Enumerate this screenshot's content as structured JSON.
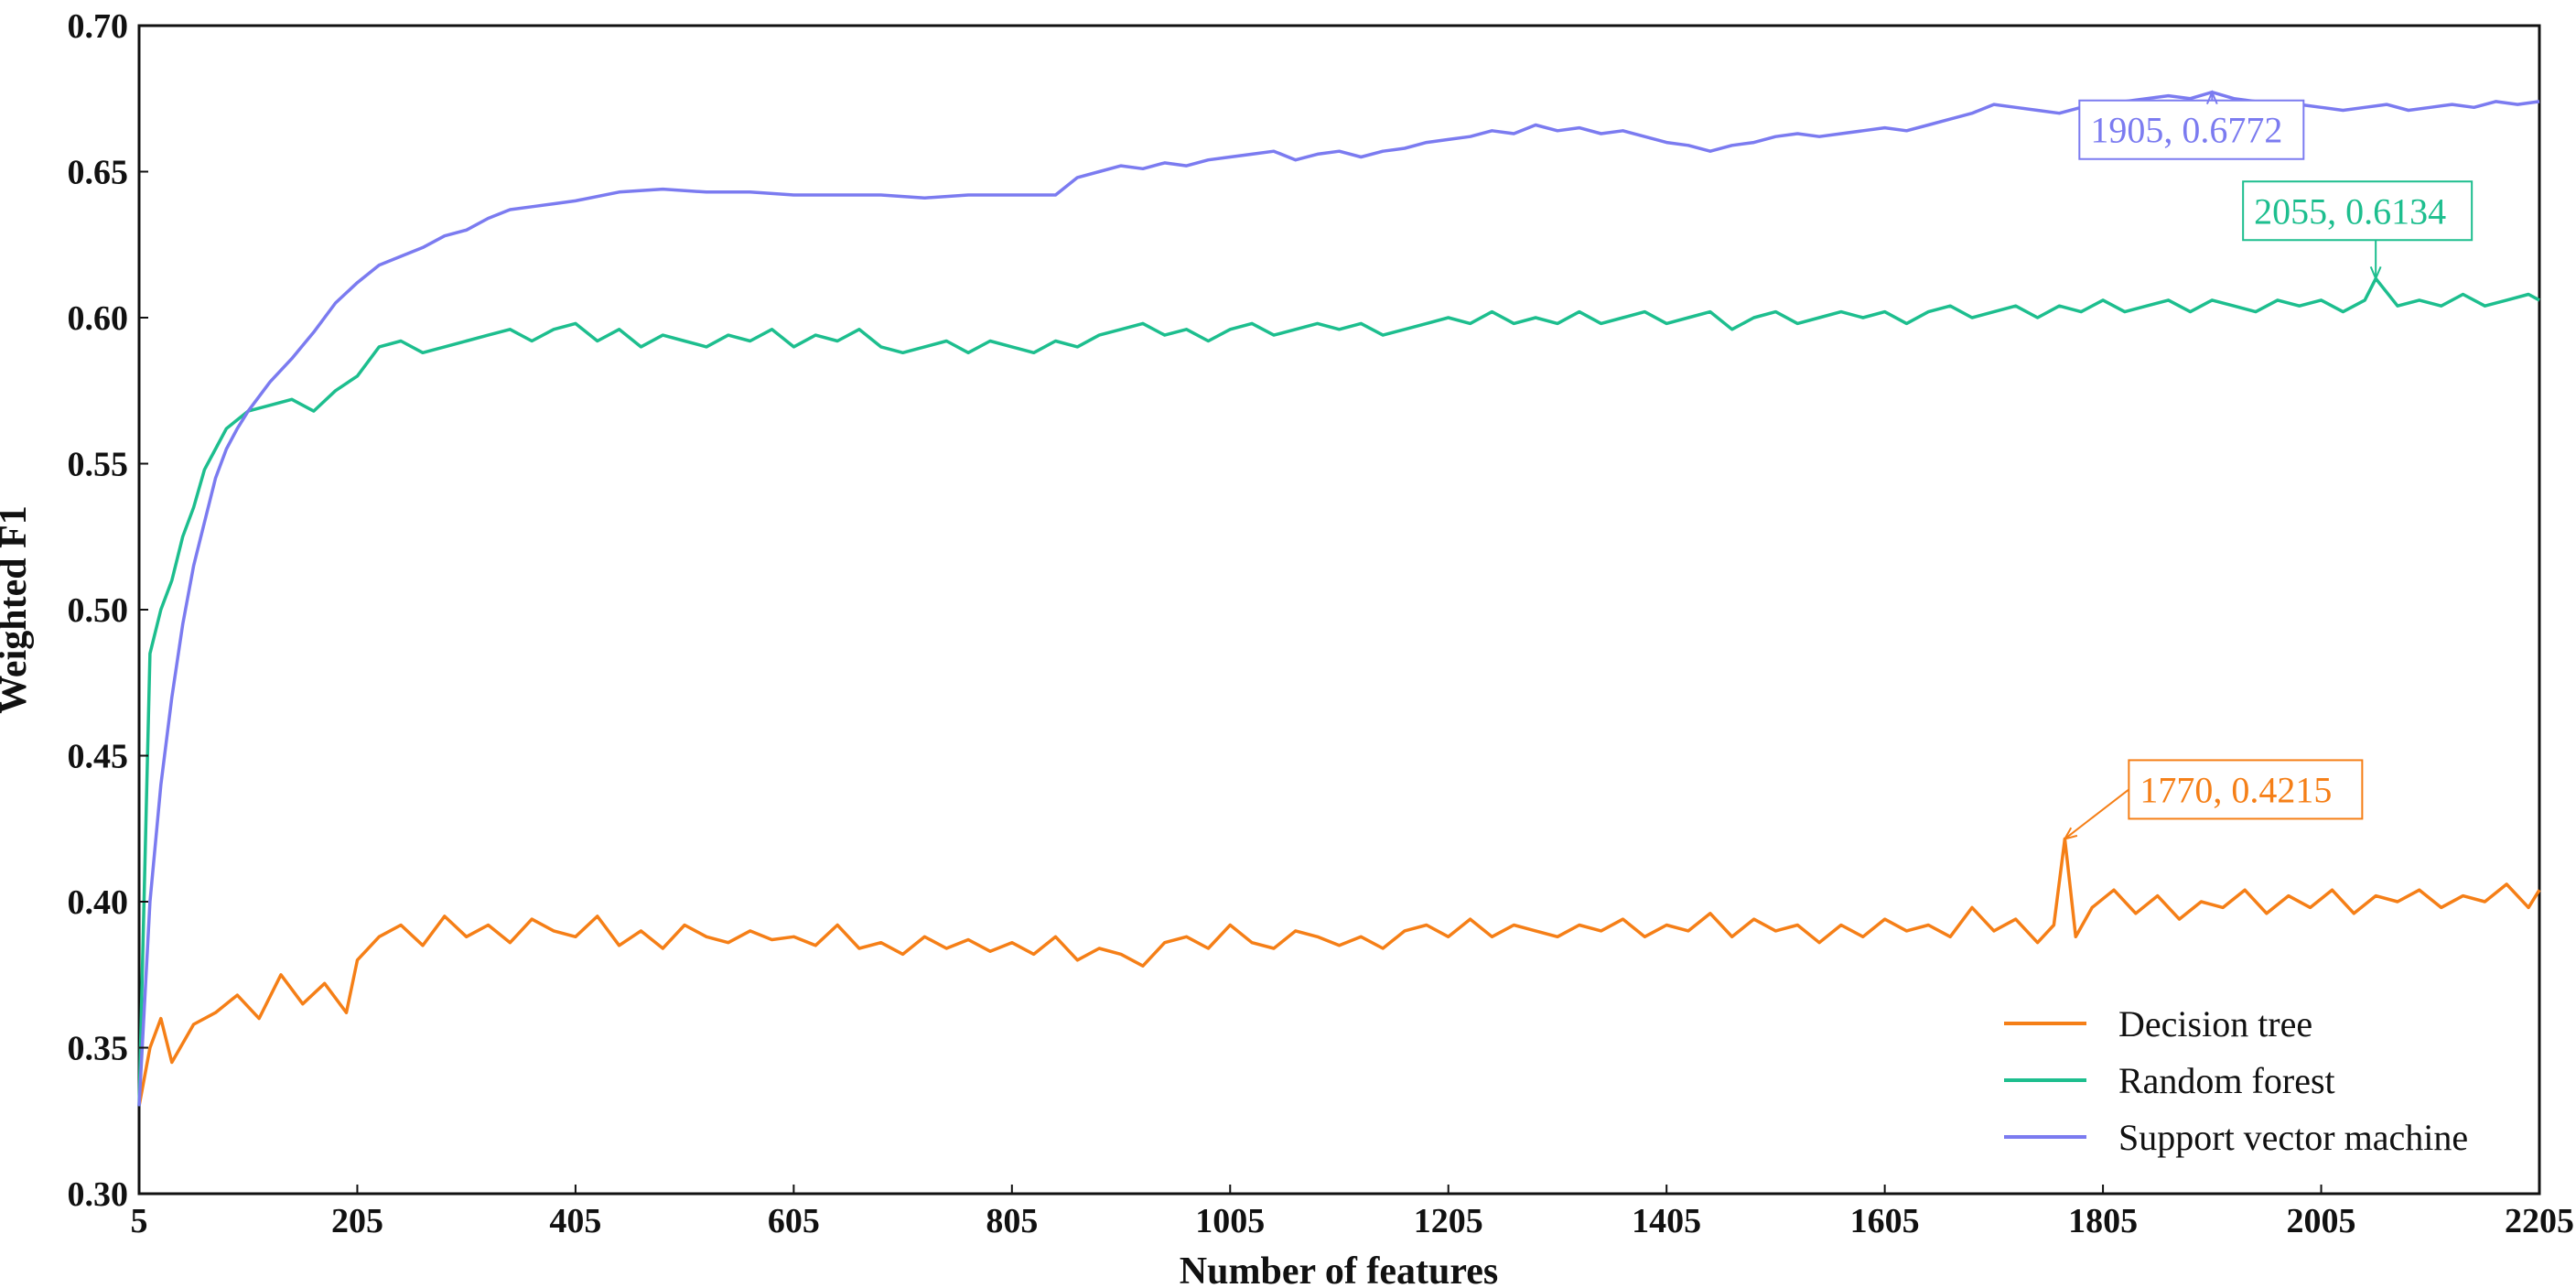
{
  "chart_data": {
    "type": "line",
    "title": "",
    "xlabel": "Number of features",
    "ylabel": "Weighted F1",
    "xlim": [
      5,
      2205
    ],
    "ylim": [
      0.3,
      0.7
    ],
    "x_ticks": [
      5,
      205,
      405,
      605,
      805,
      1005,
      1205,
      1405,
      1605,
      1805,
      2005,
      2205
    ],
    "y_ticks": [
      0.3,
      0.35,
      0.4,
      0.45,
      0.5,
      0.55,
      0.6,
      0.65,
      0.7
    ],
    "x_tick_labels": [
      "5",
      "205",
      "405",
      "605",
      "805",
      "1005",
      "1205",
      "1405",
      "1605",
      "1805",
      "2005",
      "2205"
    ],
    "y_tick_labels": [
      "0.30",
      "0.35",
      "0.40",
      "0.45",
      "0.50",
      "0.55",
      "0.60",
      "0.65",
      "0.70"
    ],
    "grid": false,
    "legend_position": "lower-right",
    "series": [
      {
        "name": "Decision tree",
        "color": "#F57F17",
        "x": [
          5,
          15,
          25,
          35,
          55,
          75,
          95,
          115,
          135,
          155,
          175,
          195,
          205,
          225,
          245,
          265,
          285,
          305,
          325,
          345,
          365,
          385,
          405,
          425,
          445,
          465,
          485,
          505,
          525,
          545,
          565,
          585,
          605,
          625,
          645,
          665,
          685,
          705,
          725,
          745,
          765,
          785,
          805,
          825,
          845,
          865,
          885,
          905,
          925,
          945,
          965,
          985,
          1005,
          1025,
          1045,
          1065,
          1085,
          1105,
          1125,
          1145,
          1165,
          1185,
          1205,
          1225,
          1245,
          1265,
          1285,
          1305,
          1325,
          1345,
          1365,
          1385,
          1405,
          1425,
          1445,
          1465,
          1485,
          1505,
          1525,
          1545,
          1565,
          1585,
          1605,
          1625,
          1645,
          1665,
          1685,
          1705,
          1725,
          1745,
          1760,
          1770,
          1780,
          1795,
          1815,
          1835,
          1855,
          1875,
          1895,
          1915,
          1935,
          1955,
          1975,
          1995,
          2015,
          2035,
          2055,
          2075,
          2095,
          2115,
          2135,
          2155,
          2175,
          2195,
          2205
        ],
        "values": [
          0.33,
          0.35,
          0.36,
          0.345,
          0.358,
          0.362,
          0.368,
          0.36,
          0.375,
          0.365,
          0.372,
          0.362,
          0.38,
          0.388,
          0.392,
          0.385,
          0.395,
          0.388,
          0.392,
          0.386,
          0.394,
          0.39,
          0.388,
          0.395,
          0.385,
          0.39,
          0.384,
          0.392,
          0.388,
          0.386,
          0.39,
          0.387,
          0.388,
          0.385,
          0.392,
          0.384,
          0.386,
          0.382,
          0.388,
          0.384,
          0.387,
          0.383,
          0.386,
          0.382,
          0.388,
          0.38,
          0.384,
          0.382,
          0.378,
          0.386,
          0.388,
          0.384,
          0.392,
          0.386,
          0.384,
          0.39,
          0.388,
          0.385,
          0.388,
          0.384,
          0.39,
          0.392,
          0.388,
          0.394,
          0.388,
          0.392,
          0.39,
          0.388,
          0.392,
          0.39,
          0.394,
          0.388,
          0.392,
          0.39,
          0.396,
          0.388,
          0.394,
          0.39,
          0.392,
          0.386,
          0.392,
          0.388,
          0.394,
          0.39,
          0.392,
          0.388,
          0.398,
          0.39,
          0.394,
          0.386,
          0.392,
          0.4215,
          0.388,
          0.398,
          0.404,
          0.396,
          0.402,
          0.394,
          0.4,
          0.398,
          0.404,
          0.396,
          0.402,
          0.398,
          0.404,
          0.396,
          0.402,
          0.4,
          0.404,
          0.398,
          0.402,
          0.4,
          0.406,
          0.398,
          0.404
        ]
      },
      {
        "name": "Random forest",
        "color": "#1DBE8E",
        "x": [
          5,
          15,
          25,
          35,
          45,
          55,
          65,
          75,
          85,
          95,
          105,
          125,
          145,
          165,
          185,
          205,
          225,
          245,
          265,
          285,
          305,
          325,
          345,
          365,
          385,
          405,
          425,
          445,
          465,
          485,
          505,
          525,
          545,
          565,
          585,
          605,
          625,
          645,
          665,
          685,
          705,
          725,
          745,
          765,
          785,
          805,
          825,
          845,
          865,
          885,
          905,
          925,
          945,
          965,
          985,
          1005,
          1025,
          1045,
          1065,
          1085,
          1105,
          1125,
          1145,
          1165,
          1185,
          1205,
          1225,
          1245,
          1265,
          1285,
          1305,
          1325,
          1345,
          1365,
          1385,
          1405,
          1425,
          1445,
          1465,
          1485,
          1505,
          1525,
          1545,
          1565,
          1585,
          1605,
          1625,
          1645,
          1665,
          1685,
          1705,
          1725,
          1745,
          1765,
          1785,
          1805,
          1825,
          1845,
          1865,
          1885,
          1905,
          1925,
          1945,
          1965,
          1985,
          2005,
          2025,
          2045,
          2055,
          2075,
          2095,
          2115,
          2135,
          2155,
          2175,
          2195,
          2205
        ],
        "values": [
          0.33,
          0.485,
          0.5,
          0.51,
          0.525,
          0.535,
          0.548,
          0.555,
          0.562,
          0.565,
          0.568,
          0.57,
          0.572,
          0.568,
          0.575,
          0.58,
          0.59,
          0.592,
          0.588,
          0.59,
          0.592,
          0.594,
          0.596,
          0.592,
          0.596,
          0.598,
          0.592,
          0.596,
          0.59,
          0.594,
          0.592,
          0.59,
          0.594,
          0.592,
          0.596,
          0.59,
          0.594,
          0.592,
          0.596,
          0.59,
          0.588,
          0.59,
          0.592,
          0.588,
          0.592,
          0.59,
          0.588,
          0.592,
          0.59,
          0.594,
          0.596,
          0.598,
          0.594,
          0.596,
          0.592,
          0.596,
          0.598,
          0.594,
          0.596,
          0.598,
          0.596,
          0.598,
          0.594,
          0.596,
          0.598,
          0.6,
          0.598,
          0.602,
          0.598,
          0.6,
          0.598,
          0.602,
          0.598,
          0.6,
          0.602,
          0.598,
          0.6,
          0.602,
          0.596,
          0.6,
          0.602,
          0.598,
          0.6,
          0.602,
          0.6,
          0.602,
          0.598,
          0.602,
          0.604,
          0.6,
          0.602,
          0.604,
          0.6,
          0.604,
          0.602,
          0.606,
          0.602,
          0.604,
          0.606,
          0.602,
          0.606,
          0.604,
          0.602,
          0.606,
          0.604,
          0.606,
          0.602,
          0.606,
          0.6134,
          0.604,
          0.606,
          0.604,
          0.608,
          0.604,
          0.606,
          0.608,
          0.606
        ]
      },
      {
        "name": "Support vector machine",
        "color": "#7B7BF0",
        "x": [
          5,
          15,
          25,
          35,
          45,
          55,
          65,
          75,
          85,
          95,
          105,
          125,
          145,
          165,
          185,
          205,
          225,
          245,
          265,
          285,
          305,
          325,
          345,
          365,
          385,
          405,
          445,
          485,
          525,
          565,
          605,
          645,
          685,
          725,
          765,
          805,
          845,
          865,
          885,
          905,
          925,
          945,
          965,
          985,
          1005,
          1025,
          1045,
          1065,
          1085,
          1105,
          1125,
          1145,
          1165,
          1185,
          1205,
          1225,
          1245,
          1265,
          1285,
          1305,
          1325,
          1345,
          1365,
          1385,
          1405,
          1425,
          1445,
          1465,
          1485,
          1505,
          1525,
          1545,
          1565,
          1585,
          1605,
          1625,
          1645,
          1665,
          1685,
          1705,
          1725,
          1745,
          1765,
          1785,
          1805,
          1825,
          1845,
          1865,
          1885,
          1905,
          1925,
          1945,
          1965,
          1985,
          2005,
          2025,
          2045,
          2065,
          2085,
          2105,
          2125,
          2145,
          2165,
          2185,
          2205
        ],
        "values": [
          0.33,
          0.4,
          0.44,
          0.47,
          0.495,
          0.515,
          0.53,
          0.545,
          0.555,
          0.562,
          0.568,
          0.578,
          0.586,
          0.595,
          0.605,
          0.612,
          0.618,
          0.621,
          0.624,
          0.628,
          0.63,
          0.634,
          0.637,
          0.638,
          0.639,
          0.64,
          0.643,
          0.644,
          0.643,
          0.643,
          0.642,
          0.642,
          0.642,
          0.641,
          0.642,
          0.642,
          0.642,
          0.648,
          0.65,
          0.652,
          0.651,
          0.653,
          0.652,
          0.654,
          0.655,
          0.656,
          0.657,
          0.654,
          0.656,
          0.657,
          0.655,
          0.657,
          0.658,
          0.66,
          0.661,
          0.662,
          0.664,
          0.663,
          0.666,
          0.664,
          0.665,
          0.663,
          0.664,
          0.662,
          0.66,
          0.659,
          0.657,
          0.659,
          0.66,
          0.662,
          0.663,
          0.662,
          0.663,
          0.664,
          0.665,
          0.664,
          0.666,
          0.668,
          0.67,
          0.673,
          0.672,
          0.671,
          0.67,
          0.672,
          0.673,
          0.674,
          0.675,
          0.676,
          0.675,
          0.6772,
          0.675,
          0.674,
          0.672,
          0.673,
          0.672,
          0.671,
          0.672,
          0.673,
          0.671,
          0.672,
          0.673,
          0.672,
          0.674,
          0.673,
          0.674
        ]
      }
    ],
    "annotations": [
      {
        "text": "1905, 0.6772",
        "x": 1905,
        "y": 0.6772,
        "color": "#7B7BF0"
      },
      {
        "text": "2055, 0.6134",
        "x": 2055,
        "y": 0.6134,
        "color": "#1DBE8E"
      },
      {
        "text": "1770, 0.4215",
        "x": 1770,
        "y": 0.4215,
        "color": "#F57F17"
      }
    ]
  }
}
